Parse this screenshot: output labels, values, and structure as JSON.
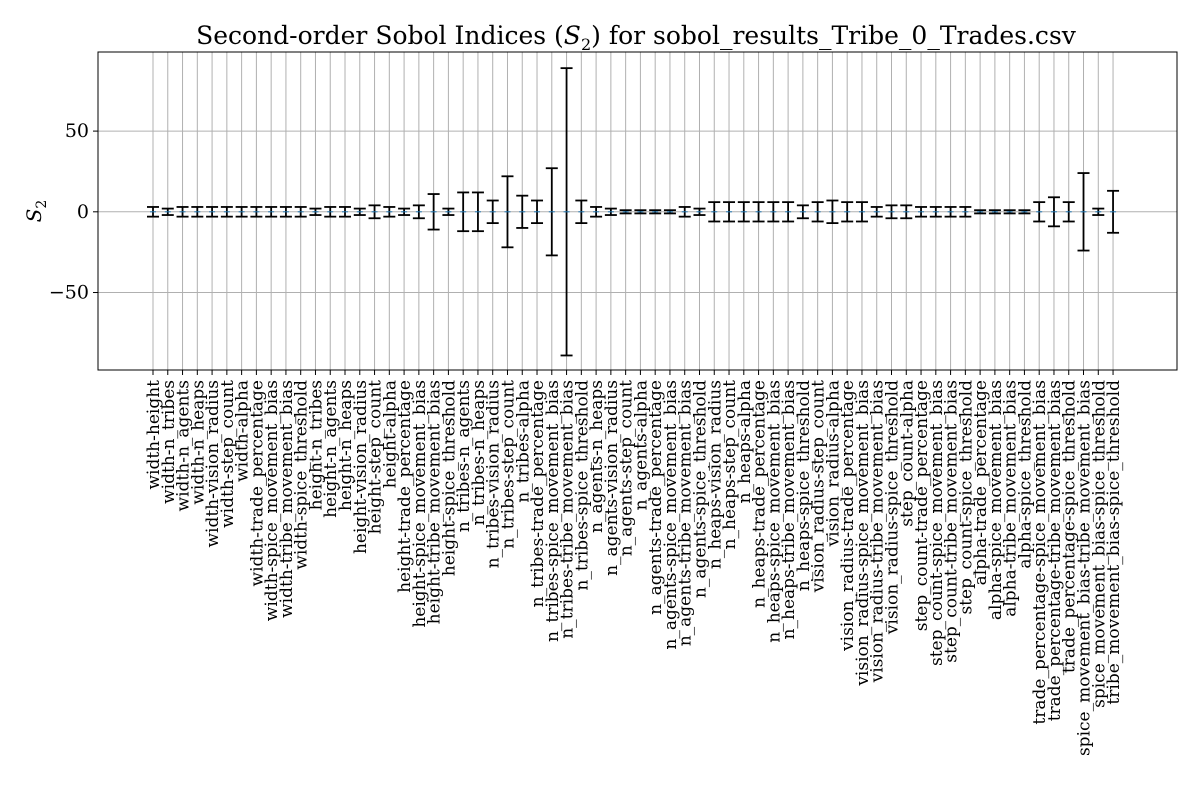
{
  "chart_data": {
    "type": "bar",
    "title_main": "Second-order Sobol Indices (",
    "title_sym": "S",
    "title_sub": "2",
    "title_rest": ") for sobol_results_Tribe_0_Trades.csv",
    "ylabel_sym": "S",
    "ylabel_sub": "2",
    "xlabel": "",
    "ylim": [
      -98,
      99
    ],
    "yticks": [
      -50,
      0,
      50
    ],
    "ytick_labels": [
      "−50",
      "0",
      "50"
    ],
    "grid": true,
    "categories": [
      "width-height",
      "width-n_tribes",
      "width-n_agents",
      "width-n_heaps",
      "width-vision_radius",
      "width-step_count",
      "width-alpha",
      "width-trade_percentage",
      "width-spice_movement_bias",
      "width-tribe_movement_bias",
      "width-spice_threshold",
      "height-n_tribes",
      "height-n_agents",
      "height-n_heaps",
      "height-vision_radius",
      "height-step_count",
      "height-alpha",
      "height-trade_percentage",
      "height-spice_movement_bias",
      "height-tribe_movement_bias",
      "height-spice_threshold",
      "n_tribes-n_agents",
      "n_tribes-n_heaps",
      "n_tribes-vision_radius",
      "n_tribes-step_count",
      "n_tribes-alpha",
      "n_tribes-trade_percentage",
      "n_tribes-spice_movement_bias",
      "n_tribes-tribe_movement_bias",
      "n_tribes-spice_threshold",
      "n_agents-n_heaps",
      "n_agents-vision_radius",
      "n_agents-step_count",
      "n_agents-alpha",
      "n_agents-trade_percentage",
      "n_agents-spice_movement_bias",
      "n_agents-tribe_movement_bias",
      "n_agents-spice_threshold",
      "n_heaps-vision_radius",
      "n_heaps-step_count",
      "n_heaps-alpha",
      "n_heaps-trade_percentage",
      "n_heaps-spice_movement_bias",
      "n_heaps-tribe_movement_bias",
      "n_heaps-spice_threshold",
      "vision_radius-step_count",
      "vision_radius-alpha",
      "vision_radius-trade_percentage",
      "vision_radius-spice_movement_bias",
      "vision_radius-tribe_movement_bias",
      "vision_radius-spice_threshold",
      "step_count-alpha",
      "step_count-trade_percentage",
      "step_count-spice_movement_bias",
      "step_count-tribe_movement_bias",
      "step_count-spice_threshold",
      "alpha-trade_percentage",
      "alpha-spice_movement_bias",
      "alpha-tribe_movement_bias",
      "alpha-spice_threshold",
      "trade_percentage-spice_movement_bias",
      "trade_percentage-tribe_movement_bias",
      "trade_percentage-spice_threshold",
      "spice_movement_bias-tribe_movement_bias",
      "spice_movement_bias-spice_threshold",
      "tribe_movement_bias-spice_threshold"
    ],
    "values": [
      0,
      0,
      0,
      0,
      0,
      0,
      0,
      0,
      0,
      0,
      0,
      0,
      0,
      0,
      0,
      0,
      0,
      0,
      0,
      0,
      0,
      0,
      0,
      0,
      0,
      0,
      0,
      0,
      0,
      0,
      0,
      0,
      0,
      0,
      0,
      0,
      0,
      0,
      0,
      0,
      0,
      0,
      0,
      0,
      0,
      0,
      0,
      0,
      0,
      0,
      0,
      0,
      0,
      0,
      0,
      0,
      0,
      0,
      0,
      0,
      0,
      0,
      0,
      0,
      0,
      0
    ],
    "errors": [
      3,
      2,
      3,
      3,
      3,
      3,
      3,
      3,
      3,
      3,
      3,
      2,
      3,
      3,
      2,
      4,
      3,
      2,
      4,
      11,
      2,
      12,
      12,
      7,
      22,
      10,
      7,
      27,
      89,
      7,
      3,
      2,
      1,
      1,
      1,
      1,
      3,
      2,
      6,
      6,
      6,
      6,
      6,
      6,
      4,
      6,
      7,
      6,
      6,
      3,
      4,
      4,
      3,
      3,
      3,
      3,
      1,
      1,
      1,
      1,
      6,
      9,
      6,
      24,
      2,
      13
    ]
  }
}
